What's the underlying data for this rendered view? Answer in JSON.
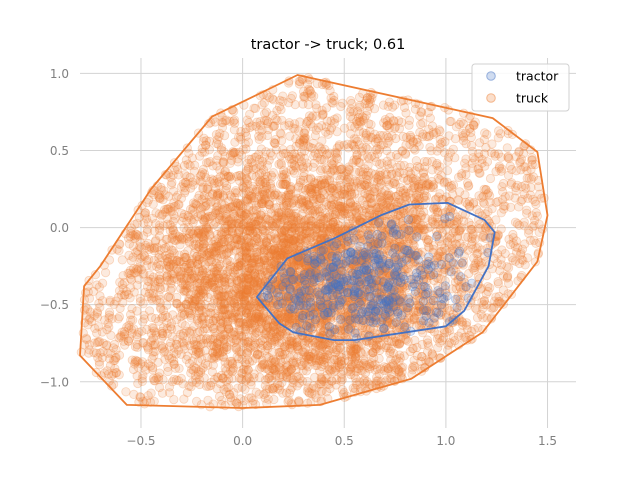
{
  "chart_data": {
    "type": "scatter",
    "title": "tractor -> truck; 0.61",
    "xlabel": "",
    "ylabel": "",
    "xlim": [
      -0.8,
      1.64
    ],
    "ylim": [
      -1.3,
      1.1
    ],
    "x_ticks": [
      -0.5,
      0.0,
      0.5,
      1.0,
      1.5
    ],
    "x_tick_labels": [
      "−0.5",
      "0.0",
      "0.5",
      "1.0",
      "1.5"
    ],
    "y_ticks": [
      -1.0,
      -0.5,
      0.0,
      0.5,
      1.0
    ],
    "y_tick_labels": [
      "−1.0",
      "−0.5",
      "0.0",
      "0.5",
      "1.0"
    ],
    "grid": true,
    "legend_position": "top-right",
    "series": [
      {
        "name": "tractor",
        "color": "#4472c4",
        "point_count_approx": 400,
        "center": [
          0.55,
          -0.38
        ],
        "hull": [
          [
            0.07,
            -0.45
          ],
          [
            0.22,
            -0.2
          ],
          [
            0.45,
            -0.07
          ],
          [
            0.68,
            0.08
          ],
          [
            0.82,
            0.15
          ],
          [
            1.01,
            0.16
          ],
          [
            1.19,
            0.05
          ],
          [
            1.24,
            -0.03
          ],
          [
            1.21,
            -0.25
          ],
          [
            1.09,
            -0.54
          ],
          [
            1.0,
            -0.64
          ],
          [
            0.55,
            -0.73
          ],
          [
            0.45,
            -0.73
          ],
          [
            0.25,
            -0.68
          ],
          [
            0.18,
            -0.62
          ]
        ]
      },
      {
        "name": "truck",
        "color": "#ed7d31",
        "point_count_approx": 6000,
        "center": [
          0.3,
          -0.3
        ],
        "hull": [
          [
            -0.78,
            -0.38
          ],
          [
            -0.7,
            -0.25
          ],
          [
            -0.45,
            0.25
          ],
          [
            -0.15,
            0.72
          ],
          [
            0.27,
            0.99
          ],
          [
            1.23,
            0.71
          ],
          [
            1.45,
            0.49
          ],
          [
            1.5,
            0.08
          ],
          [
            1.45,
            -0.22
          ],
          [
            1.18,
            -0.68
          ],
          [
            0.83,
            -0.98
          ],
          [
            0.38,
            -1.15
          ],
          [
            0.0,
            -1.17
          ],
          [
            -0.57,
            -1.15
          ],
          [
            -0.8,
            -0.83
          ]
        ]
      }
    ]
  }
}
